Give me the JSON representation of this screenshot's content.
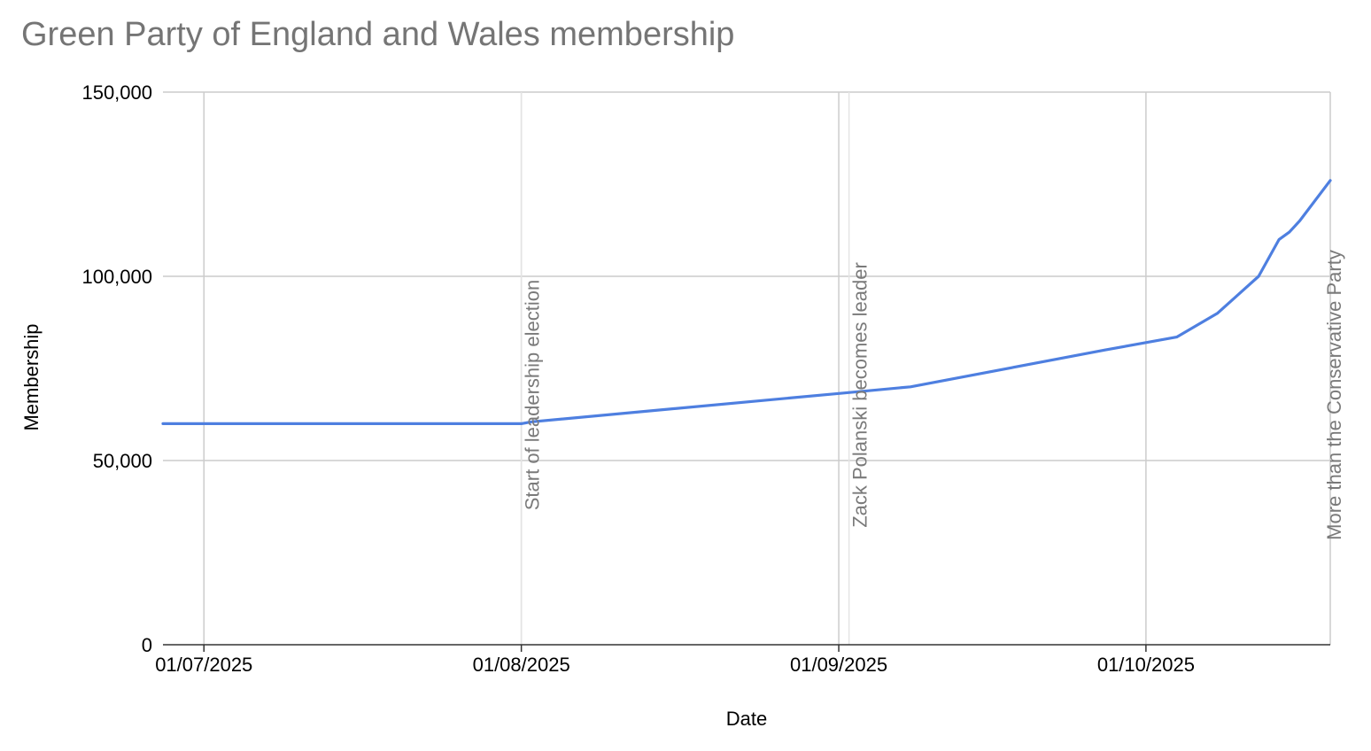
{
  "chart_data": {
    "type": "line",
    "title": "Green Party of England and Wales membership",
    "xlabel": "Date",
    "ylabel": "Membership",
    "ylim": [
      0,
      150000
    ],
    "xlim": [
      "2025-06-27",
      "2025-10-19"
    ],
    "y_ticks": [
      {
        "value": 0,
        "label": "0"
      },
      {
        "value": 50000,
        "label": "50,000"
      },
      {
        "value": 100000,
        "label": "100,000"
      },
      {
        "value": 150000,
        "label": "150,000"
      }
    ],
    "x_ticks": [
      {
        "date": "2025-07-01",
        "label": "01/07/2025"
      },
      {
        "date": "2025-08-01",
        "label": "01/08/2025"
      },
      {
        "date": "2025-09-01",
        "label": "01/09/2025"
      },
      {
        "date": "2025-10-01",
        "label": "01/10/2025"
      }
    ],
    "grid": true,
    "series": [
      {
        "color": "#4e7fe0",
        "points": [
          {
            "date": "2025-06-27",
            "value": 60000
          },
          {
            "date": "2025-08-01",
            "value": 60000
          },
          {
            "date": "2025-08-02",
            "value": 60500
          },
          {
            "date": "2025-09-01",
            "value": 68200
          },
          {
            "date": "2025-09-08",
            "value": 70000
          },
          {
            "date": "2025-09-27",
            "value": 80000
          },
          {
            "date": "2025-10-04",
            "value": 83500
          },
          {
            "date": "2025-10-08",
            "value": 90000
          },
          {
            "date": "2025-10-12",
            "value": 100000
          },
          {
            "date": "2025-10-14",
            "value": 110000
          },
          {
            "date": "2025-10-15",
            "value": 112000
          },
          {
            "date": "2025-10-16",
            "value": 115000
          },
          {
            "date": "2025-10-19",
            "value": 126000
          }
        ]
      }
    ],
    "annotations": [
      {
        "date": "2025-08-01",
        "text": "Start of leadership election"
      },
      {
        "date": "2025-09-02",
        "text": "Zack Polanski becomes leader"
      },
      {
        "date": "2025-10-19",
        "text": "More than the Conservative Party"
      }
    ]
  }
}
